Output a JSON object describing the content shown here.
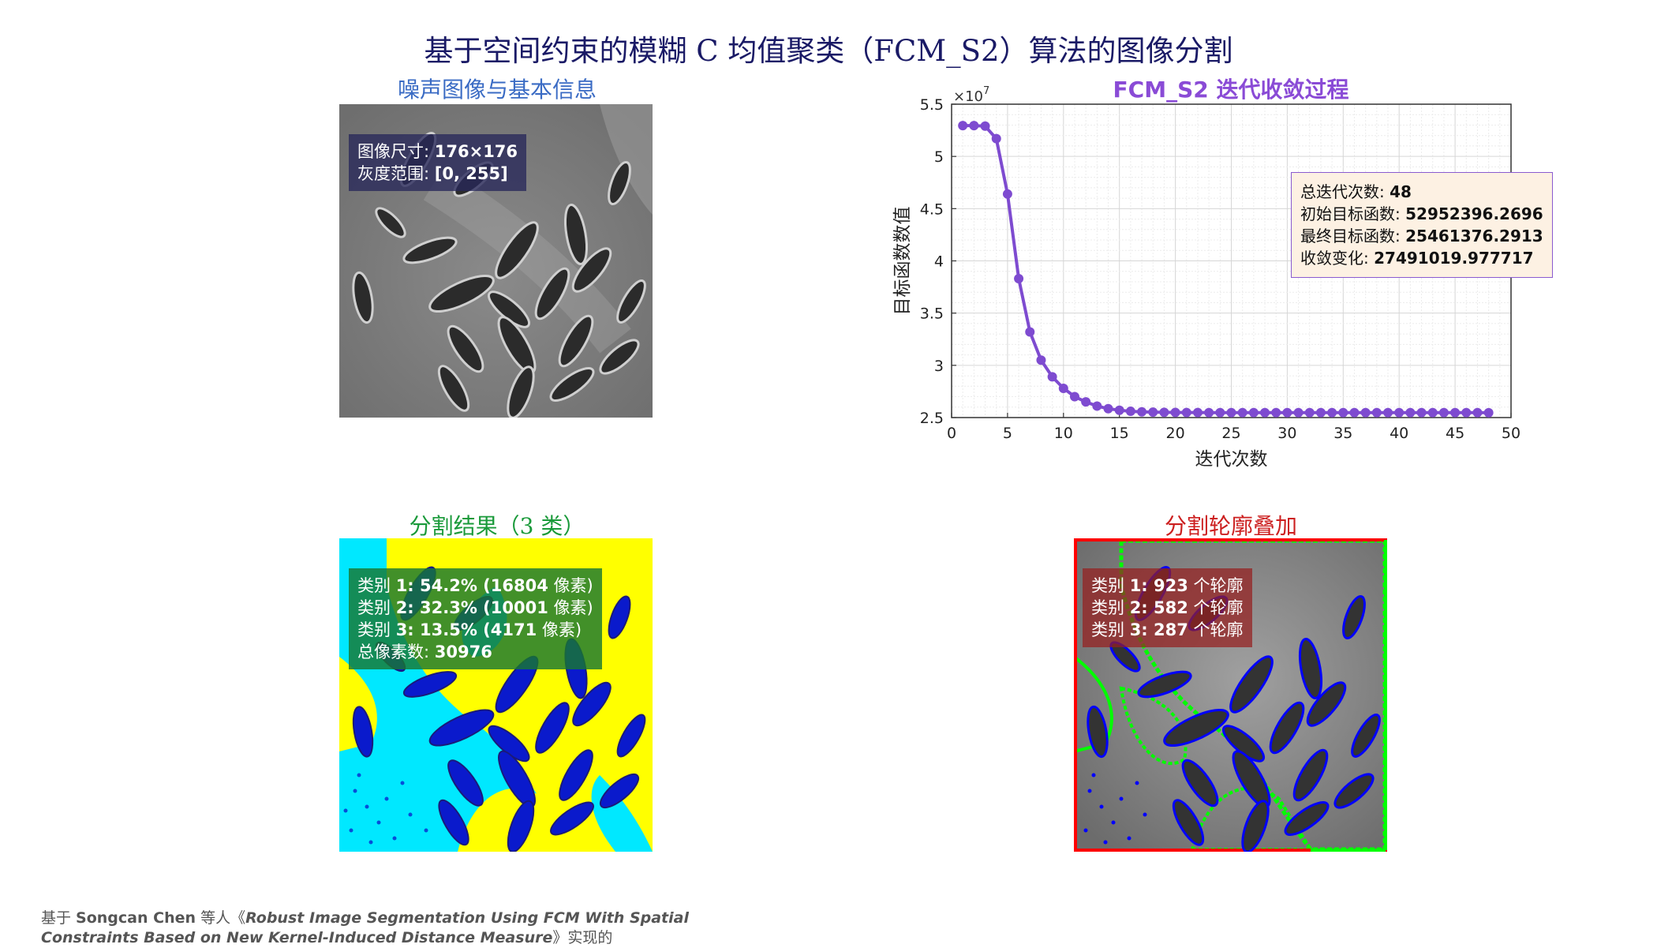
{
  "main_title": "基于空间约束的模糊 C 均值聚类（FCM_S2）算法的图像分割",
  "panels": {
    "noisy": {
      "title": "噪声图像与基本信息",
      "info": [
        {
          "label": "图像尺寸: ",
          "value": "176×176"
        },
        {
          "label": "灰度范围: ",
          "value": "[0, 255]"
        }
      ]
    },
    "segmentation": {
      "title": "分割结果（3 类）",
      "info": [
        {
          "label": "类别 ",
          "value": "1: 54.2% (16804",
          "suffix": " 像素)"
        },
        {
          "label": "类别 ",
          "value": "2: 32.3% (10001",
          "suffix": " 像素)"
        },
        {
          "label": "类别 ",
          "value": "3: 13.5% (4171",
          "suffix": " 像素)"
        },
        {
          "label": "总像素数: ",
          "value": "30976",
          "suffix": ""
        }
      ],
      "colors": {
        "class_1": "#00e8ff",
        "class_2": "#ffff00",
        "class_3": "#0a1acc"
      }
    },
    "contour": {
      "title": "分割轮廓叠加",
      "info": [
        {
          "label": "类别 ",
          "value": "1: 923",
          "suffix": " 个轮廓"
        },
        {
          "label": "类别 ",
          "value": "2: 582",
          "suffix": " 个轮廓"
        },
        {
          "label": "类别 ",
          "value": "3: 287",
          "suffix": " 个轮廓"
        }
      ],
      "colors": {
        "class_1": "#ff0000",
        "class_2": "#00ff00",
        "class_3": "#0000ff"
      }
    }
  },
  "stats": [
    {
      "label": "总迭代次数: ",
      "value": "48"
    },
    {
      "label": "初始目标函数: ",
      "value": "52952396.2696"
    },
    {
      "label": "最终目标函数: ",
      "value": "25461376.2913"
    },
    {
      "label": "收敛变化: ",
      "value": "27491019.977717"
    }
  ],
  "chart_data": {
    "type": "line",
    "title": "FCM_S2 迭代收敛过程",
    "xlabel": "迭代次数",
    "ylabel": "目标函数数值",
    "exponent_label": "×10",
    "exponent": "7",
    "xlim": [
      0,
      50
    ],
    "ylim": [
      2.5,
      5.5
    ],
    "xticks": [
      0,
      5,
      10,
      15,
      20,
      25,
      30,
      35,
      40,
      45,
      50
    ],
    "yticks": [
      2.5,
      3,
      3.5,
      4,
      4.5,
      5,
      5.5
    ],
    "grid": true,
    "color": "#7e4bd0",
    "series": [
      {
        "x": [
          1,
          2,
          3,
          4,
          5,
          6,
          7,
          8,
          9,
          10,
          11,
          12,
          13,
          14,
          15,
          16,
          17,
          18,
          19,
          20,
          21,
          22,
          23,
          24,
          25,
          26,
          27,
          28,
          29,
          30,
          31,
          32,
          33,
          34,
          35,
          36,
          37,
          38,
          39,
          40,
          41,
          42,
          43,
          44,
          45,
          46,
          47,
          48
        ],
        "values": [
          5.2952,
          5.295,
          5.29,
          5.17,
          4.64,
          3.83,
          3.32,
          3.05,
          2.89,
          2.78,
          2.7,
          2.65,
          2.61,
          2.585,
          2.57,
          2.56,
          2.555,
          2.552,
          2.55,
          2.549,
          2.548,
          2.548,
          2.547,
          2.547,
          2.547,
          2.547,
          2.547,
          2.547,
          2.547,
          2.547,
          2.547,
          2.547,
          2.547,
          2.547,
          2.547,
          2.547,
          2.547,
          2.547,
          2.547,
          2.547,
          2.547,
          2.547,
          2.547,
          2.547,
          2.547,
          2.547,
          2.547,
          2.5461
        ]
      }
    ]
  },
  "footer": {
    "line1_prefix": "基于 ",
    "line1_bold": "Songcan Chen",
    "line1_mid": " 等人《",
    "line1_title": "Robust Image Segmentation Using FCM With Spatial",
    "line2_title": "Constraints Based on New Kernel-Induced Distance Measure",
    "line2_suffix": "》实现的"
  }
}
